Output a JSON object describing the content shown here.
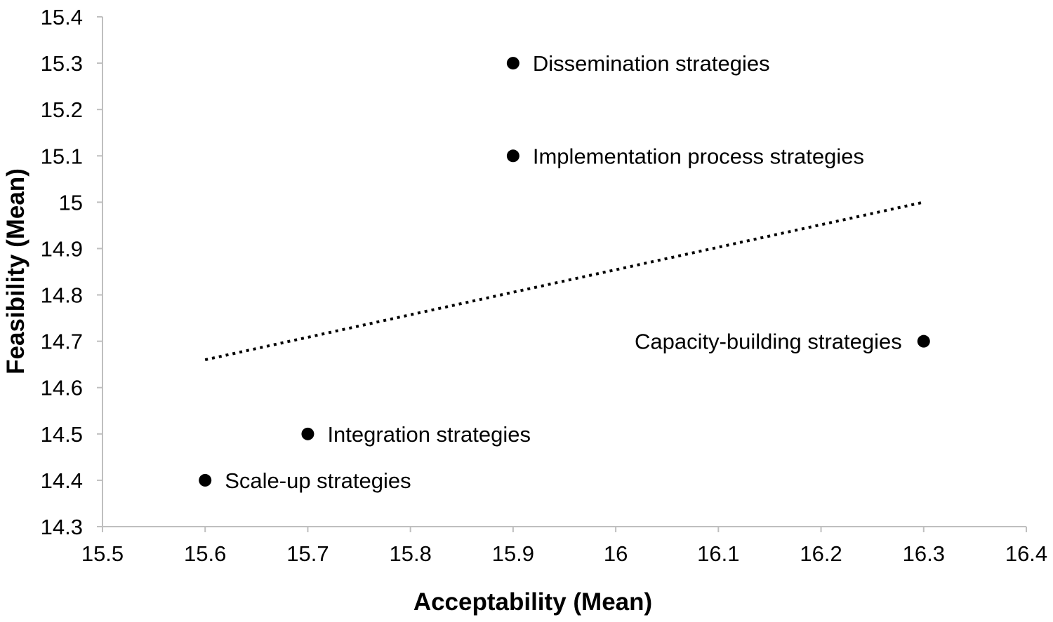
{
  "chart_data": {
    "type": "scatter",
    "xlabel": "Acceptability (Mean)",
    "ylabel": "Feasibility (Mean)",
    "xlim": [
      15.5,
      16.4
    ],
    "ylim": [
      14.3,
      15.4
    ],
    "xticks": [
      "15.5",
      "15.6",
      "15.7",
      "15.8",
      "15.9",
      "16",
      "16.1",
      "16.2",
      "16.3",
      "16.4"
    ],
    "yticks": [
      "14.3",
      "14.4",
      "14.5",
      "14.6",
      "14.7",
      "14.8",
      "14.9",
      "15",
      "15.1",
      "15.2",
      "15.3",
      "15.4"
    ],
    "grid": false,
    "points": [
      {
        "label": "Dissemination strategies",
        "x": 15.9,
        "y": 15.3
      },
      {
        "label": "Implementation process strategies",
        "x": 15.9,
        "y": 15.1
      },
      {
        "label": "Capacity-building strategies",
        "x": 16.3,
        "y": 14.7
      },
      {
        "label": "Integration strategies",
        "x": 15.7,
        "y": 14.5
      },
      {
        "label": "Scale-up strategies",
        "x": 15.6,
        "y": 14.4
      }
    ],
    "trendline": {
      "style": "dotted",
      "x": [
        15.6,
        16.3
      ],
      "y": [
        14.66,
        15.0
      ]
    },
    "colors": {
      "marker": "#000000",
      "axis": "#bfbfbf",
      "trendline": "#000000"
    }
  }
}
